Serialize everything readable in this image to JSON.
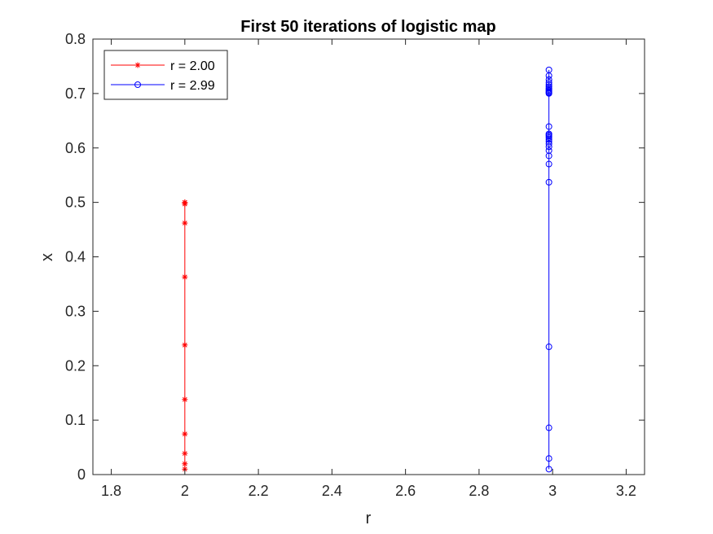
{
  "chart_data": {
    "type": "line",
    "title": "First 50 iterations of logistic map",
    "xlabel": "r",
    "ylabel": "x",
    "xlim": [
      1.75,
      3.25
    ],
    "ylim": [
      0,
      0.8
    ],
    "xticks": [
      1.8,
      2.0,
      2.2,
      2.4,
      2.6,
      2.8,
      3.0,
      3.2
    ],
    "xtick_labels": [
      "1.8",
      "2",
      "2.2",
      "2.4",
      "2.6",
      "2.8",
      "3",
      "3.2"
    ],
    "yticks": [
      0,
      0.1,
      0.2,
      0.3,
      0.4,
      0.5,
      0.6,
      0.7,
      0.8
    ],
    "ytick_labels": [
      "0",
      "0.1",
      "0.2",
      "0.3",
      "0.4",
      "0.5",
      "0.6",
      "0.7",
      "0.8"
    ],
    "grid": false,
    "legend_position": "top-left",
    "series": [
      {
        "name": "r = 2.00",
        "color": "#ff0000",
        "marker": "asterisk",
        "x": [
          2,
          2,
          2,
          2,
          2,
          2,
          2,
          2,
          2,
          2,
          2
        ],
        "y": [
          0.01,
          0.0198,
          0.0388,
          0.0746,
          0.138,
          0.238,
          0.363,
          0.462,
          0.497,
          0.4999,
          0.5
        ]
      },
      {
        "name": "r = 2.99",
        "color": "#0000ff",
        "marker": "circle",
        "x": [
          2.99,
          2.99,
          2.99,
          2.99,
          2.99,
          2.99,
          2.99,
          2.99,
          2.99,
          2.99,
          2.99,
          2.99,
          2.99,
          2.99,
          2.99,
          2.99,
          2.99,
          2.99,
          2.99,
          2.99,
          2.99,
          2.99,
          2.99,
          2.99,
          2.99,
          2.99,
          2.99,
          2.99,
          2.99
        ],
        "y": [
          0.01,
          0.0296,
          0.0859,
          0.2347,
          0.537,
          0.7434,
          0.5704,
          0.7327,
          0.5855,
          0.7257,
          0.5952,
          0.7204,
          0.6022,
          0.7162,
          0.6077,
          0.7128,
          0.6121,
          0.71,
          0.6157,
          0.7075,
          0.6188,
          0.7053,
          0.6214,
          0.7034,
          0.6237,
          0.7017,
          0.6258,
          0.7001,
          0.6393
        ]
      }
    ]
  }
}
